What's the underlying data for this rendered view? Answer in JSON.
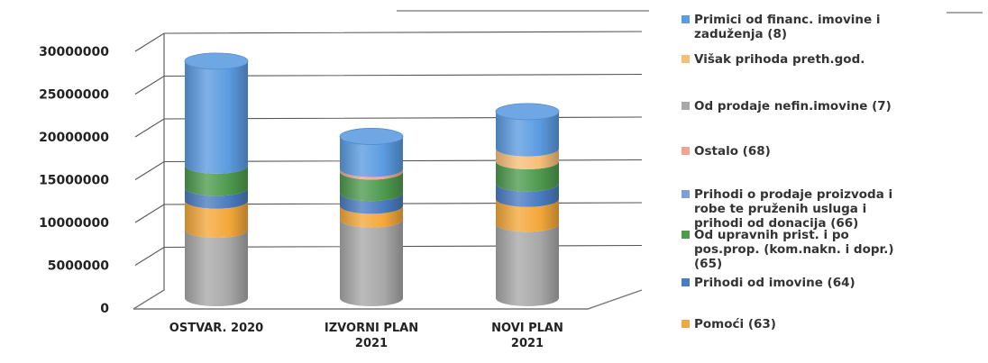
{
  "chart_data": {
    "type": "bar",
    "subtype": "stacked-3d-cylinder",
    "categories": [
      [
        "OSTVAR. 2020"
      ],
      [
        "IZVORNI PLAN",
        "2021"
      ],
      [
        "NOVI PLAN",
        "2021"
      ]
    ],
    "ylim": [
      0,
      30000000
    ],
    "yticks": [
      "0",
      "5000000",
      "10000000",
      "15000000",
      "20000000",
      "25000000",
      "30000000"
    ],
    "series": [
      {
        "name": "Pomoći (63)",
        "color": "#F4A83A",
        "values": [
          3400000,
          1600000,
          2900000
        ]
      },
      {
        "name": "Prihodi od imovine (64)",
        "color": "#4A7CC0",
        "values": [
          1500000,
          1500000,
          1800000
        ]
      },
      {
        "name": "Od upravnih prist. i po pos.prop. (kom.nakn. i dopr.) (65)",
        "color": "#4E9A4E",
        "values": [
          2600000,
          2500000,
          2600000
        ]
      },
      {
        "name": "Prihodi o prodaje proizvoda i robe te pruženih usluga i prihodi od donacija (66)",
        "color": "#7E9FD8",
        "values": [
          0,
          0,
          0
        ]
      },
      {
        "name": "Ostalo (68)",
        "color": "#F2A490",
        "values": [
          0,
          300000,
          0
        ]
      },
      {
        "name": "Od prodaje nefin.imovine (7)",
        "color": "#A8A8A8",
        "values": [
          8000000,
          9200000,
          8700000
        ]
      },
      {
        "name": "Višak prihoda preth.god.",
        "color": "#F7BE7A",
        "values": [
          0,
          0,
          1500000
        ]
      },
      {
        "name": "Primici od financ. imovine i zaduženja (8)",
        "color": "#5B9BE0",
        "values": [
          12200000,
          3800000,
          4300000
        ]
      }
    ],
    "stack_order": [
      5,
      0,
      1,
      2,
      3,
      4,
      6,
      7
    ],
    "legend": {
      "placement": "right",
      "entries": [
        {
          "series": 7,
          "lines": [
            "Primici od financ. imovine  i",
            "zaduženja (8)"
          ]
        },
        {
          "series": 6,
          "lines": [
            "Višak prihoda preth.god."
          ]
        },
        {
          "series": 5,
          "lines": [
            "Od prodaje nefin.imovine (7)"
          ]
        },
        {
          "series": 4,
          "lines": [
            "Ostalo (68)"
          ]
        },
        {
          "series": 3,
          "lines": [
            "Prihodi o prodaje proizvoda i",
            "robe te pruženih usluga i",
            "prihodi od donacija (66)"
          ]
        },
        {
          "series": 2,
          "lines": [
            "Od upravnih prist. i po",
            "pos.prop. (kom.nakn. i dopr.)",
            "(65)"
          ]
        },
        {
          "series": 1,
          "lines": [
            "Prihodi od imovine (64)"
          ]
        },
        {
          "series": 0,
          "lines": [
            "Pomoći (63)"
          ]
        }
      ]
    },
    "grid": true
  }
}
